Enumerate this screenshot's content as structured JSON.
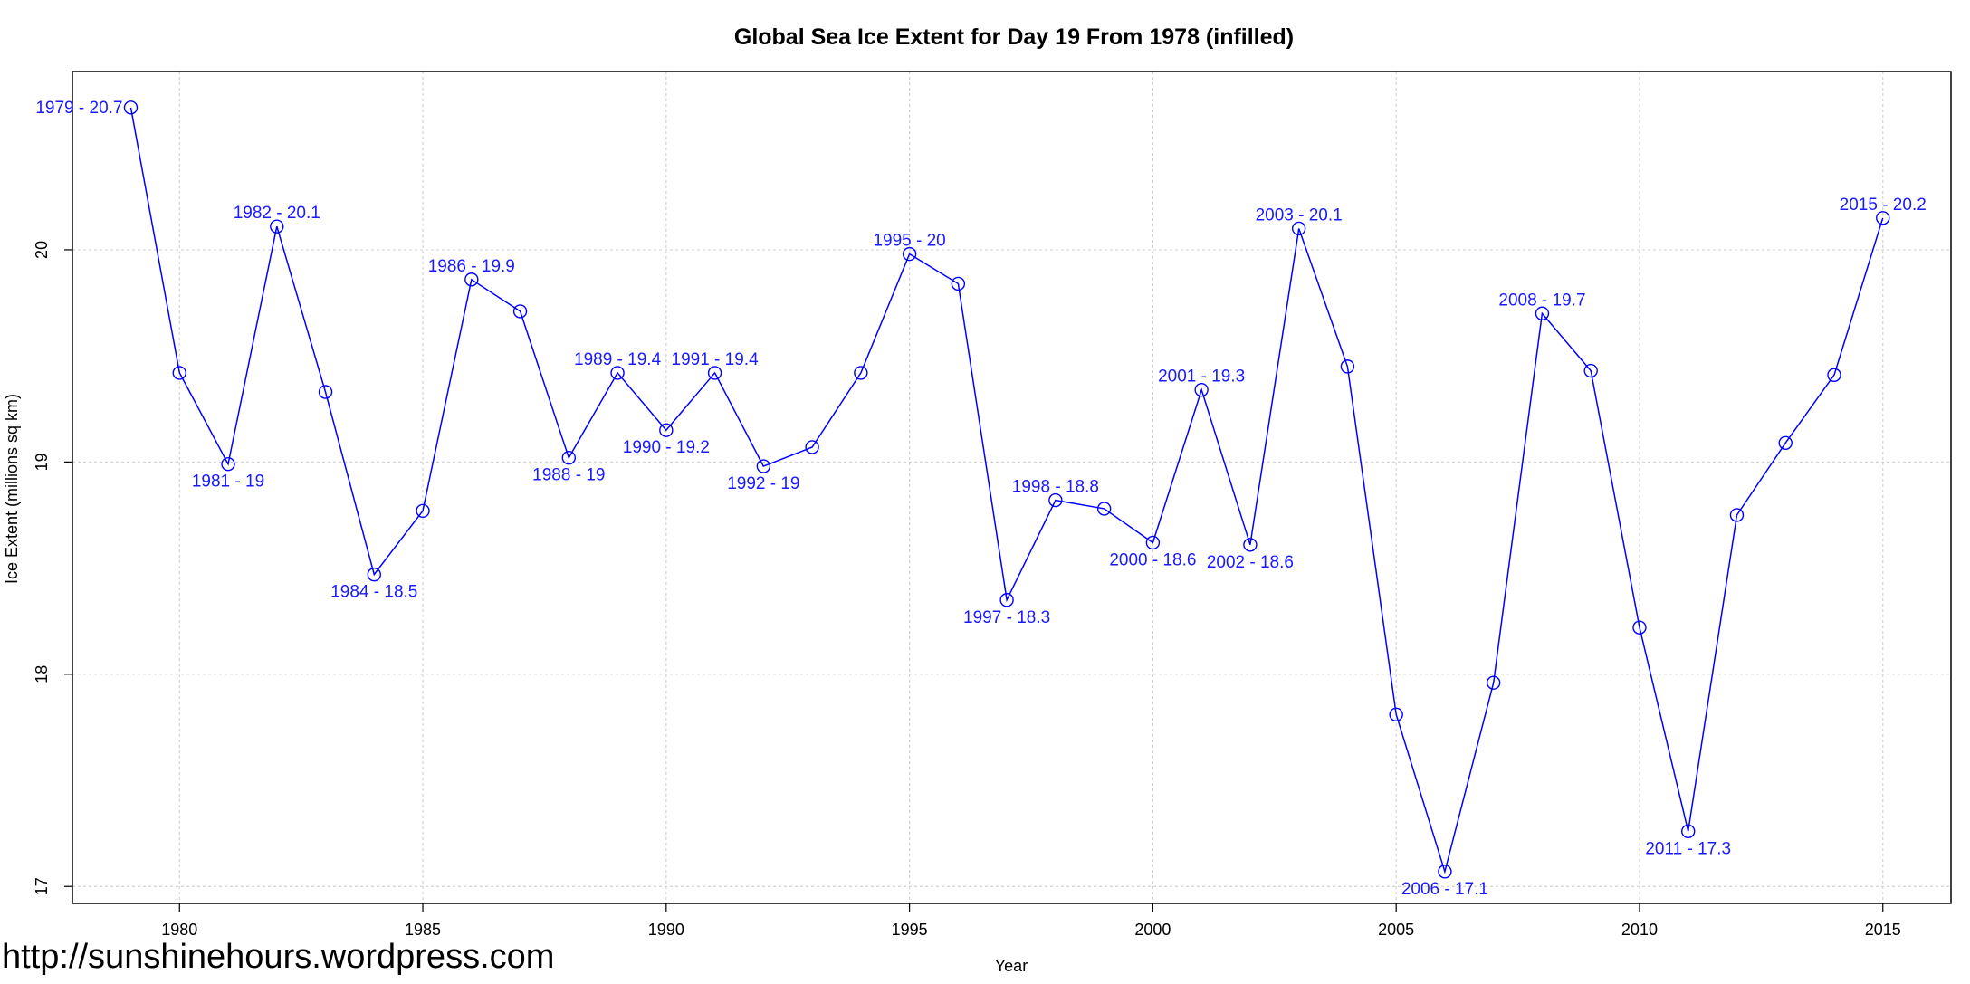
{
  "watermark": "http://sunshinehours.wordpress.com",
  "colors": {
    "series": "#0000ff",
    "label": "#1a1aff",
    "grid": "#d3d3d3",
    "axis": "#000000"
  },
  "chart_data": {
    "type": "line",
    "title": "Global Sea Ice Extent for Day 19 From 1978 (infilled)",
    "xlabel": "Year",
    "ylabel": "Ice Extent (millions sq km)",
    "xlim": [
      1977.8,
      2016.4
    ],
    "ylim": [
      16.92,
      20.84
    ],
    "xticks": [
      1980,
      1985,
      1990,
      1995,
      2000,
      2005,
      2010,
      2015
    ],
    "yticks": [
      17,
      18,
      19,
      20
    ],
    "grid": true,
    "marker": "open-circle",
    "x": [
      1979,
      1980,
      1981,
      1982,
      1983,
      1984,
      1985,
      1986,
      1987,
      1988,
      1989,
      1990,
      1991,
      1992,
      1993,
      1994,
      1995,
      1996,
      1997,
      1998,
      1999,
      2000,
      2001,
      2002,
      2003,
      2004,
      2005,
      2006,
      2007,
      2008,
      2009,
      2010,
      2011,
      2012,
      2013,
      2014,
      2015
    ],
    "y": [
      20.67,
      19.42,
      18.99,
      20.11,
      19.33,
      18.47,
      18.77,
      19.86,
      19.71,
      19.02,
      19.42,
      19.15,
      19.42,
      18.98,
      19.07,
      19.42,
      19.98,
      19.84,
      18.35,
      18.82,
      18.78,
      18.62,
      19.34,
      18.61,
      20.1,
      19.45,
      17.81,
      17.07,
      17.96,
      19.7,
      19.43,
      18.22,
      17.26,
      18.75,
      19.09,
      19.41,
      20.15
    ],
    "annotations": [
      {
        "year": 1979,
        "text": "1979 - 20.7",
        "pos": "left"
      },
      {
        "year": 1981,
        "text": "1981 - 19",
        "pos": "below"
      },
      {
        "year": 1982,
        "text": "1982 - 20.1",
        "pos": "above"
      },
      {
        "year": 1984,
        "text": "1984 - 18.5",
        "pos": "below"
      },
      {
        "year": 1986,
        "text": "1986 - 19.9",
        "pos": "above"
      },
      {
        "year": 1988,
        "text": "1988 - 19",
        "pos": "below"
      },
      {
        "year": 1989,
        "text": "1989 - 19.4",
        "pos": "above"
      },
      {
        "year": 1990,
        "text": "1990 - 19.2",
        "pos": "below"
      },
      {
        "year": 1991,
        "text": "1991 - 19.4",
        "pos": "above"
      },
      {
        "year": 1992,
        "text": "1992 - 19",
        "pos": "below"
      },
      {
        "year": 1995,
        "text": "1995 - 20",
        "pos": "above"
      },
      {
        "year": 1997,
        "text": "1997 - 18.3",
        "pos": "below"
      },
      {
        "year": 1998,
        "text": "1998 - 18.8",
        "pos": "above"
      },
      {
        "year": 2000,
        "text": "2000 - 18.6",
        "pos": "below"
      },
      {
        "year": 2001,
        "text": "2001 - 19.3",
        "pos": "above"
      },
      {
        "year": 2002,
        "text": "2002 - 18.6",
        "pos": "below"
      },
      {
        "year": 2003,
        "text": "2003 - 20.1",
        "pos": "above"
      },
      {
        "year": 2006,
        "text": "2006 - 17.1",
        "pos": "below"
      },
      {
        "year": 2008,
        "text": "2008 - 19.7",
        "pos": "above"
      },
      {
        "year": 2011,
        "text": "2011 - 17.3",
        "pos": "below"
      },
      {
        "year": 2015,
        "text": "2015 - 20.2",
        "pos": "above"
      }
    ]
  }
}
